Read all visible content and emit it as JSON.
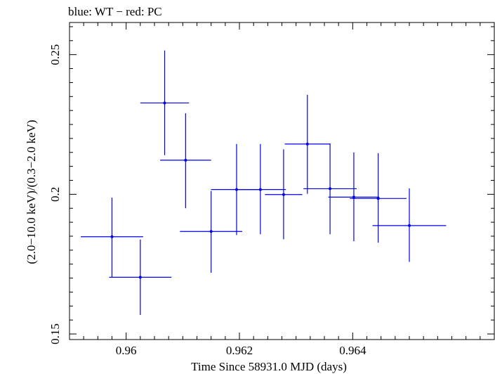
{
  "chart_data": {
    "type": "scatter",
    "title": "blue: WT − red: PC",
    "xlabel": "Time Since 58931.0 MJD (days)",
    "ylabel": "(2.0−10.0 keV)/(0.3−2.0 keV)",
    "xlim": [
      0.959,
      0.9665
    ],
    "ylim": [
      0.148,
      0.2615
    ],
    "x_ticks": [
      0.96,
      0.962,
      0.964
    ],
    "x_tick_labels": [
      "0.96",
      "0.962",
      "0.964"
    ],
    "y_ticks": [
      0.15,
      0.2,
      0.25
    ],
    "y_tick_labels": [
      "0.15",
      "0.2",
      "0.25"
    ],
    "grid": false,
    "series": [
      {
        "color": "#0000ee",
        "points": [
          {
            "x": 0.95975,
            "xerr": 0.00055,
            "y": 0.1848,
            "yerr_lo": 0.0145,
            "yerr_hi": 0.014
          },
          {
            "x": 0.96025,
            "xerr": 0.00055,
            "y": 0.1703,
            "yerr_lo": 0.0135,
            "yerr_hi": 0.0135
          },
          {
            "x": 0.96068,
            "xerr": 0.00043,
            "y": 0.2327,
            "yerr_lo": 0.0187,
            "yerr_hi": 0.0188
          },
          {
            "x": 0.96105,
            "xerr": 0.00045,
            "y": 0.2122,
            "yerr_lo": 0.0172,
            "yerr_hi": 0.0168
          },
          {
            "x": 0.9615,
            "xerr": 0.00055,
            "y": 0.1867,
            "yerr_lo": 0.0148,
            "yerr_hi": 0.0145
          },
          {
            "x": 0.96195,
            "xerr": 0.00045,
            "y": 0.2017,
            "yerr_lo": 0.0163,
            "yerr_hi": 0.0163
          },
          {
            "x": 0.96237,
            "xerr": 0.00045,
            "y": 0.2017,
            "yerr_lo": 0.016,
            "yerr_hi": 0.0163
          },
          {
            "x": 0.96278,
            "xerr": 0.00033,
            "y": 0.1999,
            "yerr_lo": 0.016,
            "yerr_hi": 0.0162
          },
          {
            "x": 0.9632,
            "xerr": 0.0004,
            "y": 0.218,
            "yerr_lo": 0.0178,
            "yerr_hi": 0.0176
          },
          {
            "x": 0.9636,
            "xerr": 0.00047,
            "y": 0.202,
            "yerr_lo": 0.0163,
            "yerr_hi": 0.0162
          },
          {
            "x": 0.96402,
            "xerr": 0.00045,
            "y": 0.199,
            "yerr_lo": 0.0158,
            "yerr_hi": 0.016
          },
          {
            "x": 0.96445,
            "xerr": 0.0005,
            "y": 0.1985,
            "yerr_lo": 0.0158,
            "yerr_hi": 0.0162
          },
          {
            "x": 0.965,
            "xerr": 0.00065,
            "y": 0.1888,
            "yerr_lo": 0.013,
            "yerr_hi": 0.0133
          }
        ]
      }
    ]
  }
}
